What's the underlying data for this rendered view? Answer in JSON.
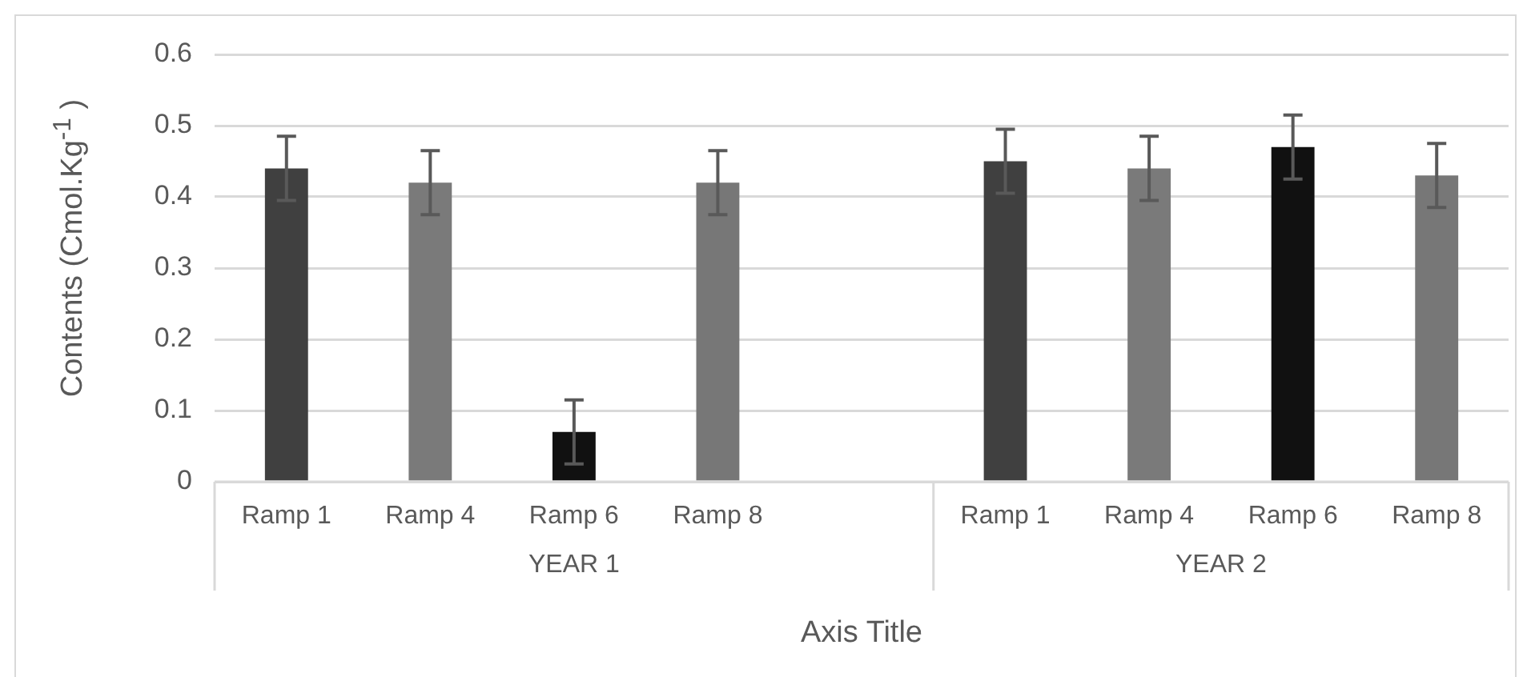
{
  "chart_data": {
    "type": "bar",
    "ylabel": "Contents (Cmol.Kg$^{-1}$ )",
    "xlabel": "Axis Title",
    "categories": [
      "Ramp 1",
      "Ramp 4",
      "Ramp 6",
      "Ramp 8",
      null,
      "Ramp 1",
      "Ramp 4",
      "Ramp 6",
      "Ramp 8"
    ],
    "values": [
      0.44,
      0.42,
      0.07,
      0.42,
      null,
      0.45,
      0.44,
      0.47,
      0.43
    ],
    "colors": [
      "#404040",
      "#7a7a7a",
      "#111111",
      "#777777",
      "#777777",
      "#404040",
      "#7a7a7a",
      "#111111",
      "#777777"
    ],
    "errors": [
      0.045,
      0.045,
      0.045,
      0.045,
      null,
      0.045,
      0.045,
      0.045,
      0.045
    ],
    "annotations": [
      "YEAR 1",
      "YEAR 2"
    ],
    "ylim": [
      0,
      0.6
    ],
    "yticks": [
      0,
      0.1,
      0.2,
      0.3,
      0.4,
      0.5,
      0.6
    ],
    "grid": "y",
    "legend": false
  }
}
